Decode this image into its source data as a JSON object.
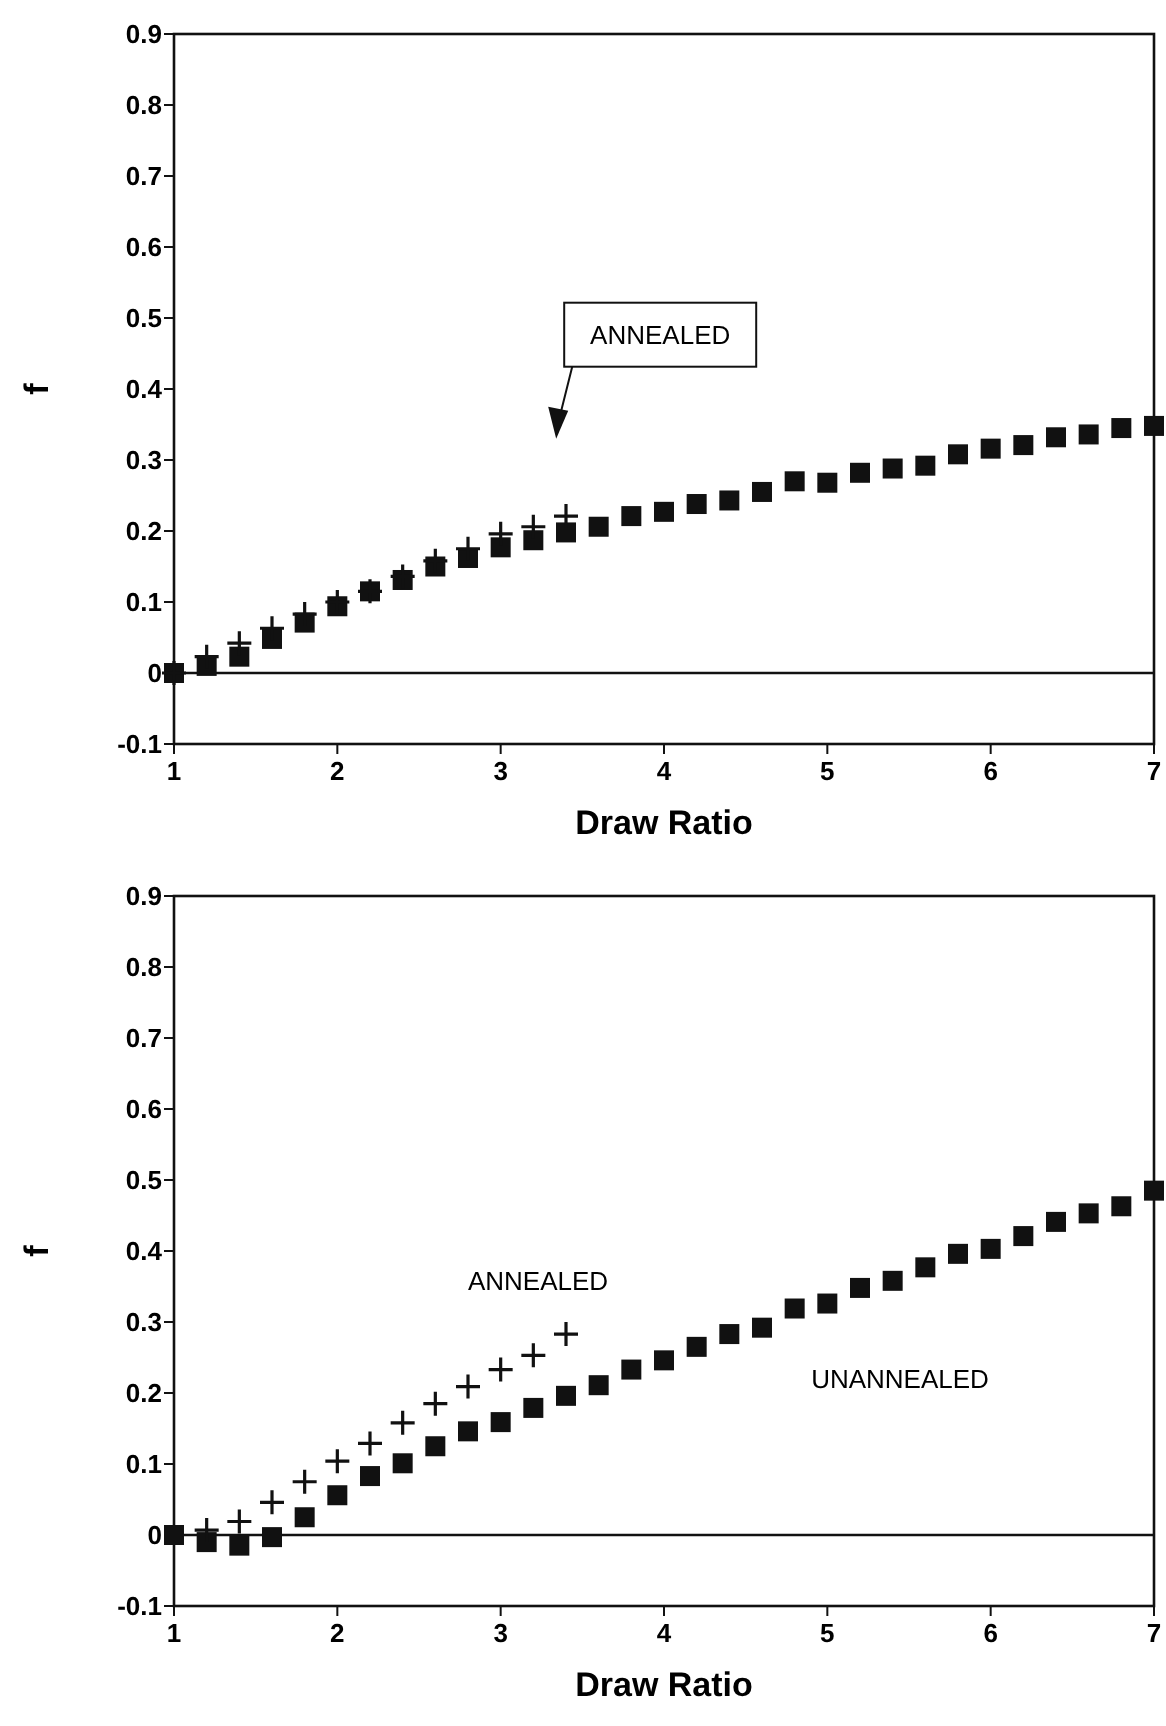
{
  "chart_data": [
    {
      "type": "scatter",
      "xlabel": "Draw Ratio",
      "ylabel": "f",
      "xlim": [
        1,
        7
      ],
      "xticks": [
        1,
        2,
        3,
        4,
        5,
        6,
        7
      ],
      "ylim": [
        -0.1,
        0.9
      ],
      "yticks": [
        -0.1,
        0,
        0.1,
        0.2,
        0.3,
        0.4,
        0.5,
        0.6,
        0.7,
        0.8,
        0.9
      ],
      "grid": false,
      "ref_lines": [
        {
          "axis": "y",
          "value": 0
        }
      ],
      "annotations": [
        "ANNEALED"
      ],
      "series": [
        {
          "color": "#111111",
          "marker": "square",
          "x": [
            1,
            1.2,
            1.4,
            1.6,
            1.8,
            2,
            2.2,
            2.4,
            2.6,
            2.8,
            3,
            3.2,
            3.4,
            3.6,
            3.8,
            4,
            4.2,
            4.4,
            4.6,
            4.8,
            5,
            5.2,
            5.4,
            5.6,
            5.8,
            6,
            6.2,
            6.4,
            6.6,
            6.8,
            7
          ],
          "values": [
            0,
            0.01,
            0.023,
            0.048,
            0.071,
            0.094,
            0.115,
            0.131,
            0.15,
            0.162,
            0.177,
            0.187,
            0.198,
            0.206,
            0.221,
            0.227,
            0.238,
            0.243,
            0.255,
            0.27,
            0.268,
            0.282,
            0.288,
            0.292,
            0.308,
            0.316,
            0.321,
            0.332,
            0.336,
            0.345,
            0.348
          ]
        },
        {
          "color": "#111111",
          "marker": "cross",
          "x": [
            1,
            1.2,
            1.4,
            1.6,
            1.8,
            2,
            2.2,
            2.4,
            2.6,
            2.8,
            3,
            3.2,
            3.4
          ],
          "values": [
            0,
            0.023,
            0.042,
            0.063,
            0.083,
            0.1,
            0.115,
            0.136,
            0.158,
            0.175,
            0.196,
            0.206,
            0.221
          ]
        }
      ]
    },
    {
      "type": "scatter",
      "xlabel": "Draw Ratio",
      "ylabel": "f",
      "xlim": [
        1,
        7
      ],
      "xticks": [
        1,
        2,
        3,
        4,
        5,
        6,
        7
      ],
      "ylim": [
        -0.1,
        0.9
      ],
      "yticks": [
        -0.1,
        0,
        0.1,
        0.2,
        0.3,
        0.4,
        0.5,
        0.6,
        0.7,
        0.8,
        0.9
      ],
      "grid": false,
      "ref_lines": [
        {
          "axis": "y",
          "value": 0
        }
      ],
      "series": [
        {
          "name": "UNANNEALED",
          "color": "#111111",
          "marker": "square",
          "x": [
            1,
            1.2,
            1.4,
            1.6,
            1.8,
            2,
            2.2,
            2.4,
            2.6,
            2.8,
            3,
            3.2,
            3.4,
            3.6,
            3.8,
            4,
            4.2,
            4.4,
            4.6,
            4.8,
            5,
            5.2,
            5.4,
            5.6,
            5.8,
            6,
            6.2,
            6.4,
            6.6,
            6.8,
            7
          ],
          "values": [
            0,
            -0.01,
            -0.015,
            -0.003,
            0.025,
            0.056,
            0.083,
            0.101,
            0.125,
            0.146,
            0.159,
            0.179,
            0.196,
            0.211,
            0.233,
            0.246,
            0.265,
            0.283,
            0.292,
            0.319,
            0.326,
            0.348,
            0.358,
            0.377,
            0.396,
            0.403,
            0.421,
            0.441,
            0.453,
            0.463,
            0.485
          ]
        },
        {
          "name": "ANNEALED",
          "color": "#111111",
          "marker": "cross",
          "x": [
            1.2,
            1.4,
            1.6,
            1.8,
            2,
            2.2,
            2.4,
            2.6,
            2.8,
            3,
            3.2,
            3.4
          ],
          "values": [
            0.007,
            0.019,
            0.046,
            0.075,
            0.104,
            0.129,
            0.158,
            0.185,
            0.209,
            0.233,
            0.253,
            0.283
          ]
        }
      ]
    }
  ]
}
